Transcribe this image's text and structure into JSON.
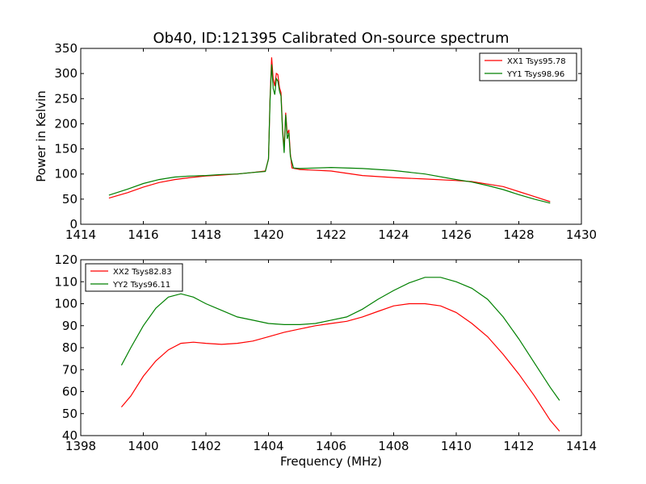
{
  "title": "Ob40, ID:121395 Calibrated On-source spectrum",
  "colors": {
    "red": "#ff0000",
    "green": "#008000"
  },
  "chart_data": [
    {
      "type": "line",
      "ylabel": "Power in Kelvin",
      "xlabel": "",
      "xlim": [
        1414,
        1430
      ],
      "ylim": [
        0,
        350
      ],
      "xticks": [
        "1414",
        "1416",
        "1418",
        "1420",
        "1422",
        "1424",
        "1426",
        "1428",
        "1430"
      ],
      "yticks": [
        "0",
        "50",
        "100",
        "150",
        "200",
        "250",
        "300",
        "350"
      ],
      "legend_position": "top-right",
      "series": [
        {
          "name": "XX1 Tsys95.78",
          "color": "#ff0000",
          "points": [
            [
              1414.9,
              52
            ],
            [
              1415.5,
              63
            ],
            [
              1416,
              74
            ],
            [
              1416.5,
              83
            ],
            [
              1417,
              89
            ],
            [
              1417.5,
              93
            ],
            [
              1418,
              96
            ],
            [
              1418.5,
              98
            ],
            [
              1419,
              100
            ],
            [
              1419.5,
              103
            ],
            [
              1419.9,
              106
            ],
            [
              1420.0,
              130
            ],
            [
              1420.05,
              250
            ],
            [
              1420.1,
              332
            ],
            [
              1420.15,
              290
            ],
            [
              1420.2,
              275
            ],
            [
              1420.25,
              300
            ],
            [
              1420.3,
              298
            ],
            [
              1420.35,
              272
            ],
            [
              1420.4,
              262
            ],
            [
              1420.45,
              190
            ],
            [
              1420.5,
              150
            ],
            [
              1420.55,
              222
            ],
            [
              1420.6,
              180
            ],
            [
              1420.65,
              188
            ],
            [
              1420.7,
              140
            ],
            [
              1420.75,
              112
            ],
            [
              1421,
              109
            ],
            [
              1422,
              106
            ],
            [
              1423,
              97
            ],
            [
              1424,
              93
            ],
            [
              1425,
              90
            ],
            [
              1426,
              87
            ],
            [
              1426.5,
              85
            ],
            [
              1427,
              80
            ],
            [
              1427.5,
              75
            ],
            [
              1428,
              65
            ],
            [
              1428.5,
              55
            ],
            [
              1429,
              45
            ]
          ]
        },
        {
          "name": "YY1 Tsys98.96",
          "color": "#008000",
          "points": [
            [
              1414.9,
              58
            ],
            [
              1415.5,
              70
            ],
            [
              1416,
              81
            ],
            [
              1416.5,
              89
            ],
            [
              1417,
              94
            ],
            [
              1417.5,
              96
            ],
            [
              1418,
              97
            ],
            [
              1418.5,
              99
            ],
            [
              1419,
              100
            ],
            [
              1419.5,
              103
            ],
            [
              1419.9,
              105
            ],
            [
              1420.0,
              130
            ],
            [
              1420.05,
              245
            ],
            [
              1420.1,
              318
            ],
            [
              1420.15,
              270
            ],
            [
              1420.2,
              258
            ],
            [
              1420.25,
              290
            ],
            [
              1420.3,
              285
            ],
            [
              1420.35,
              265
            ],
            [
              1420.4,
              255
            ],
            [
              1420.45,
              185
            ],
            [
              1420.5,
              142
            ],
            [
              1420.55,
              218
            ],
            [
              1420.6,
              170
            ],
            [
              1420.65,
              182
            ],
            [
              1420.7,
              135
            ],
            [
              1420.8,
              112
            ],
            [
              1421,
              111
            ],
            [
              1422,
              113
            ],
            [
              1423,
              111
            ],
            [
              1424,
              107
            ],
            [
              1425,
              100
            ],
            [
              1426,
              89
            ],
            [
              1426.5,
              84
            ],
            [
              1427,
              77
            ],
            [
              1427.5,
              69
            ],
            [
              1428,
              59
            ],
            [
              1428.5,
              50
            ],
            [
              1429,
              42
            ]
          ]
        }
      ]
    },
    {
      "type": "line",
      "ylabel": "",
      "xlabel": "Frequency (MHz)",
      "xlim": [
        1398,
        1414
      ],
      "ylim": [
        40,
        120
      ],
      "xticks": [
        "1398",
        "1400",
        "1402",
        "1404",
        "1406",
        "1408",
        "1410",
        "1412",
        "1414"
      ],
      "yticks": [
        "40",
        "50",
        "60",
        "70",
        "80",
        "90",
        "100",
        "110",
        "120"
      ],
      "legend_position": "top-left",
      "series": [
        {
          "name": "XX2 Tsys82.83",
          "color": "#ff0000",
          "points": [
            [
              1399.3,
              53
            ],
            [
              1399.6,
              58
            ],
            [
              1400,
              67
            ],
            [
              1400.4,
              74
            ],
            [
              1400.8,
              79
            ],
            [
              1401.2,
              82
            ],
            [
              1401.6,
              82.5
            ],
            [
              1402,
              82
            ],
            [
              1402.5,
              81.5
            ],
            [
              1403,
              82
            ],
            [
              1403.5,
              83
            ],
            [
              1404,
              85
            ],
            [
              1404.5,
              87
            ],
            [
              1405,
              88.5
            ],
            [
              1405.5,
              90
            ],
            [
              1406,
              91
            ],
            [
              1406.5,
              92
            ],
            [
              1407,
              94
            ],
            [
              1407.5,
              96.5
            ],
            [
              1408,
              99
            ],
            [
              1408.5,
              100
            ],
            [
              1409,
              100
            ],
            [
              1409.5,
              99
            ],
            [
              1410,
              96
            ],
            [
              1410.5,
              91
            ],
            [
              1411,
              85
            ],
            [
              1411.5,
              77
            ],
            [
              1412,
              68
            ],
            [
              1412.5,
              58
            ],
            [
              1413,
              47
            ],
            [
              1413.3,
              42
            ]
          ]
        },
        {
          "name": "YY2 Tsys96.11",
          "color": "#008000",
          "points": [
            [
              1399.3,
              72
            ],
            [
              1399.6,
              80
            ],
            [
              1400,
              90
            ],
            [
              1400.4,
              98
            ],
            [
              1400.8,
              103
            ],
            [
              1401.2,
              104.5
            ],
            [
              1401.6,
              103
            ],
            [
              1402,
              100
            ],
            [
              1402.5,
              97
            ],
            [
              1403,
              94
            ],
            [
              1403.5,
              92.5
            ],
            [
              1404,
              91
            ],
            [
              1404.5,
              90.5
            ],
            [
              1405,
              90.5
            ],
            [
              1405.5,
              91
            ],
            [
              1406,
              92.5
            ],
            [
              1406.5,
              94
            ],
            [
              1407,
              97.5
            ],
            [
              1407.5,
              102
            ],
            [
              1408,
              106
            ],
            [
              1408.5,
              109.5
            ],
            [
              1409,
              112
            ],
            [
              1409.5,
              112
            ],
            [
              1410,
              110
            ],
            [
              1410.5,
              107
            ],
            [
              1411,
              102
            ],
            [
              1411.5,
              94
            ],
            [
              1412,
              84
            ],
            [
              1412.5,
              73
            ],
            [
              1413,
              62
            ],
            [
              1413.3,
              56
            ]
          ]
        }
      ]
    }
  ]
}
